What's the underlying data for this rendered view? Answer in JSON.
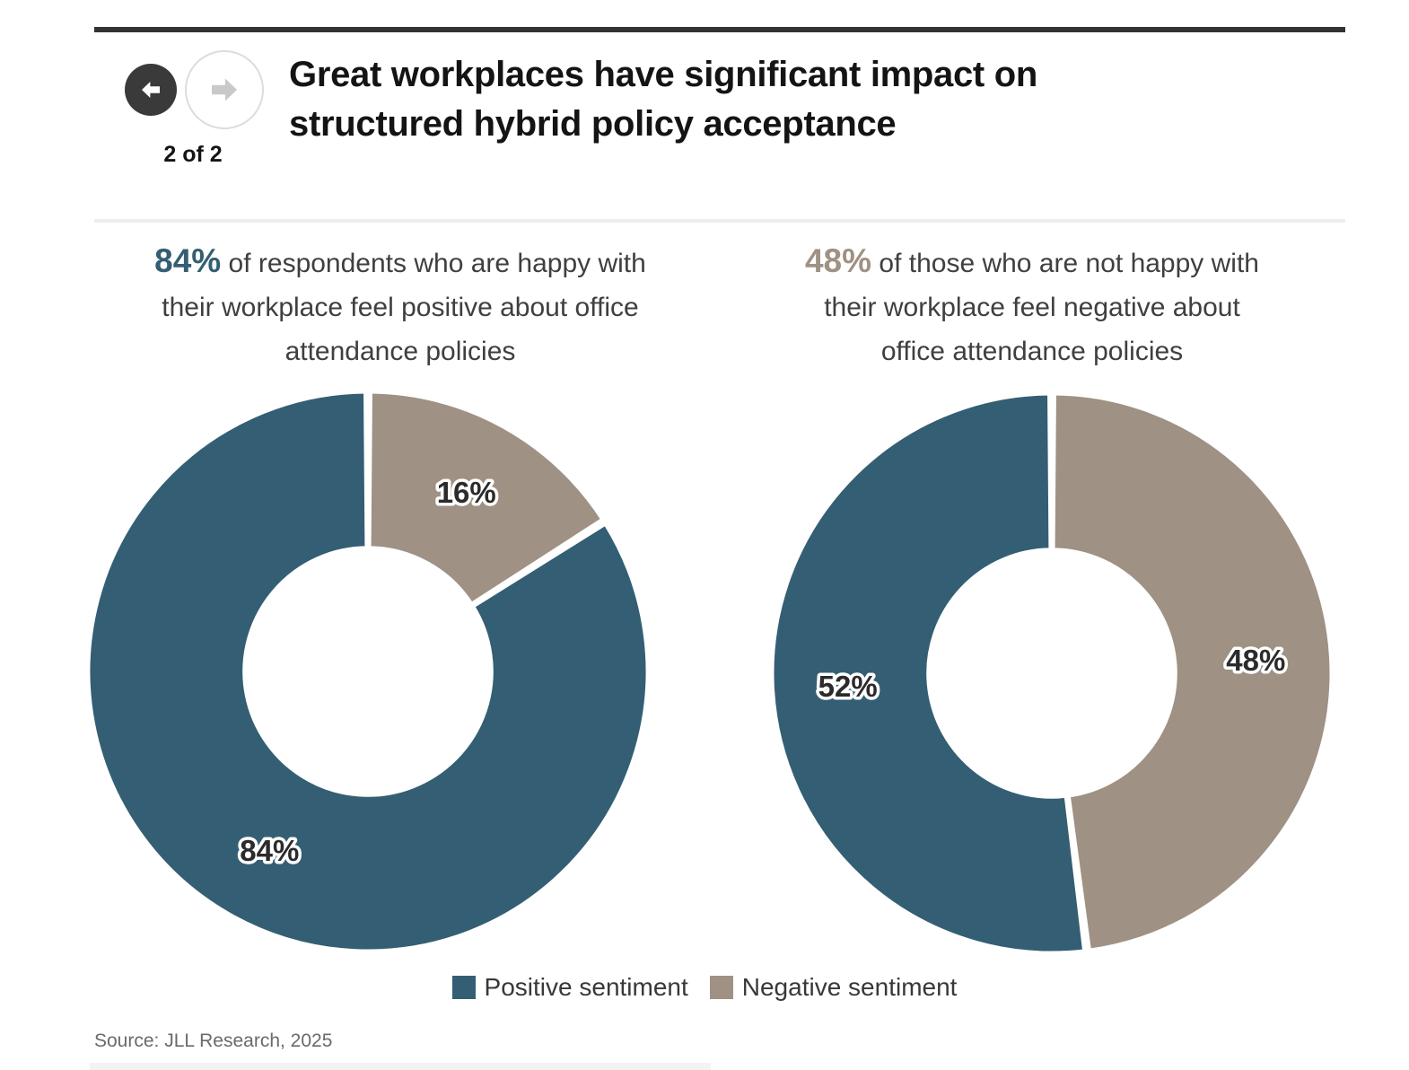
{
  "nav": {
    "page_indicator": "2 of 2",
    "back_icon": "arrow-left-icon",
    "forward_icon": "arrow-right-icon"
  },
  "header": {
    "title": "Great workplaces have significant impact on\nstructured hybrid policy acceptance"
  },
  "theme": {
    "positive_color": "#345e73",
    "negative_color": "#9f9183",
    "accent_bar_color": "#333333",
    "slice_label_color": "#2b2b2b"
  },
  "legend": {
    "items": [
      {
        "label": "Positive sentiment",
        "color": "#345e73"
      },
      {
        "label": "Negative sentiment",
        "color": "#9f9183"
      }
    ]
  },
  "footer": {
    "source": "Source: JLL Research, 2025"
  },
  "chart_data": [
    {
      "type": "pie",
      "variant": "donut",
      "caption_lead": "84%",
      "caption_lead_color": "#345e73",
      "caption_text": " of respondents who are happy with\ntheir workplace feel positive about office\nattendance policies",
      "slices": [
        {
          "label": "16%",
          "value": 16,
          "legend": "Negative sentiment",
          "color": "#9f9183"
        },
        {
          "label": "84%",
          "value": 84,
          "legend": "Positive sentiment",
          "color": "#345e73"
        }
      ],
      "start_angle_deg": 0,
      "direction": "clockwise",
      "inner_radius_ratio": 0.44,
      "label_radius_ratio": 0.73
    },
    {
      "type": "pie",
      "variant": "donut",
      "caption_lead": "48%",
      "caption_lead_color": "#9f9183",
      "caption_text": " of those who are not happy with\ntheir workplace feel negative about\noffice attendance policies",
      "slices": [
        {
          "label": "48%",
          "value": 48,
          "legend": "Negative sentiment",
          "color": "#9f9183"
        },
        {
          "label": "52%",
          "value": 52,
          "legend": "Positive sentiment",
          "color": "#345e73"
        }
      ],
      "start_angle_deg": 0,
      "direction": "clockwise",
      "inner_radius_ratio": 0.44,
      "label_radius_ratio": 0.73
    }
  ]
}
